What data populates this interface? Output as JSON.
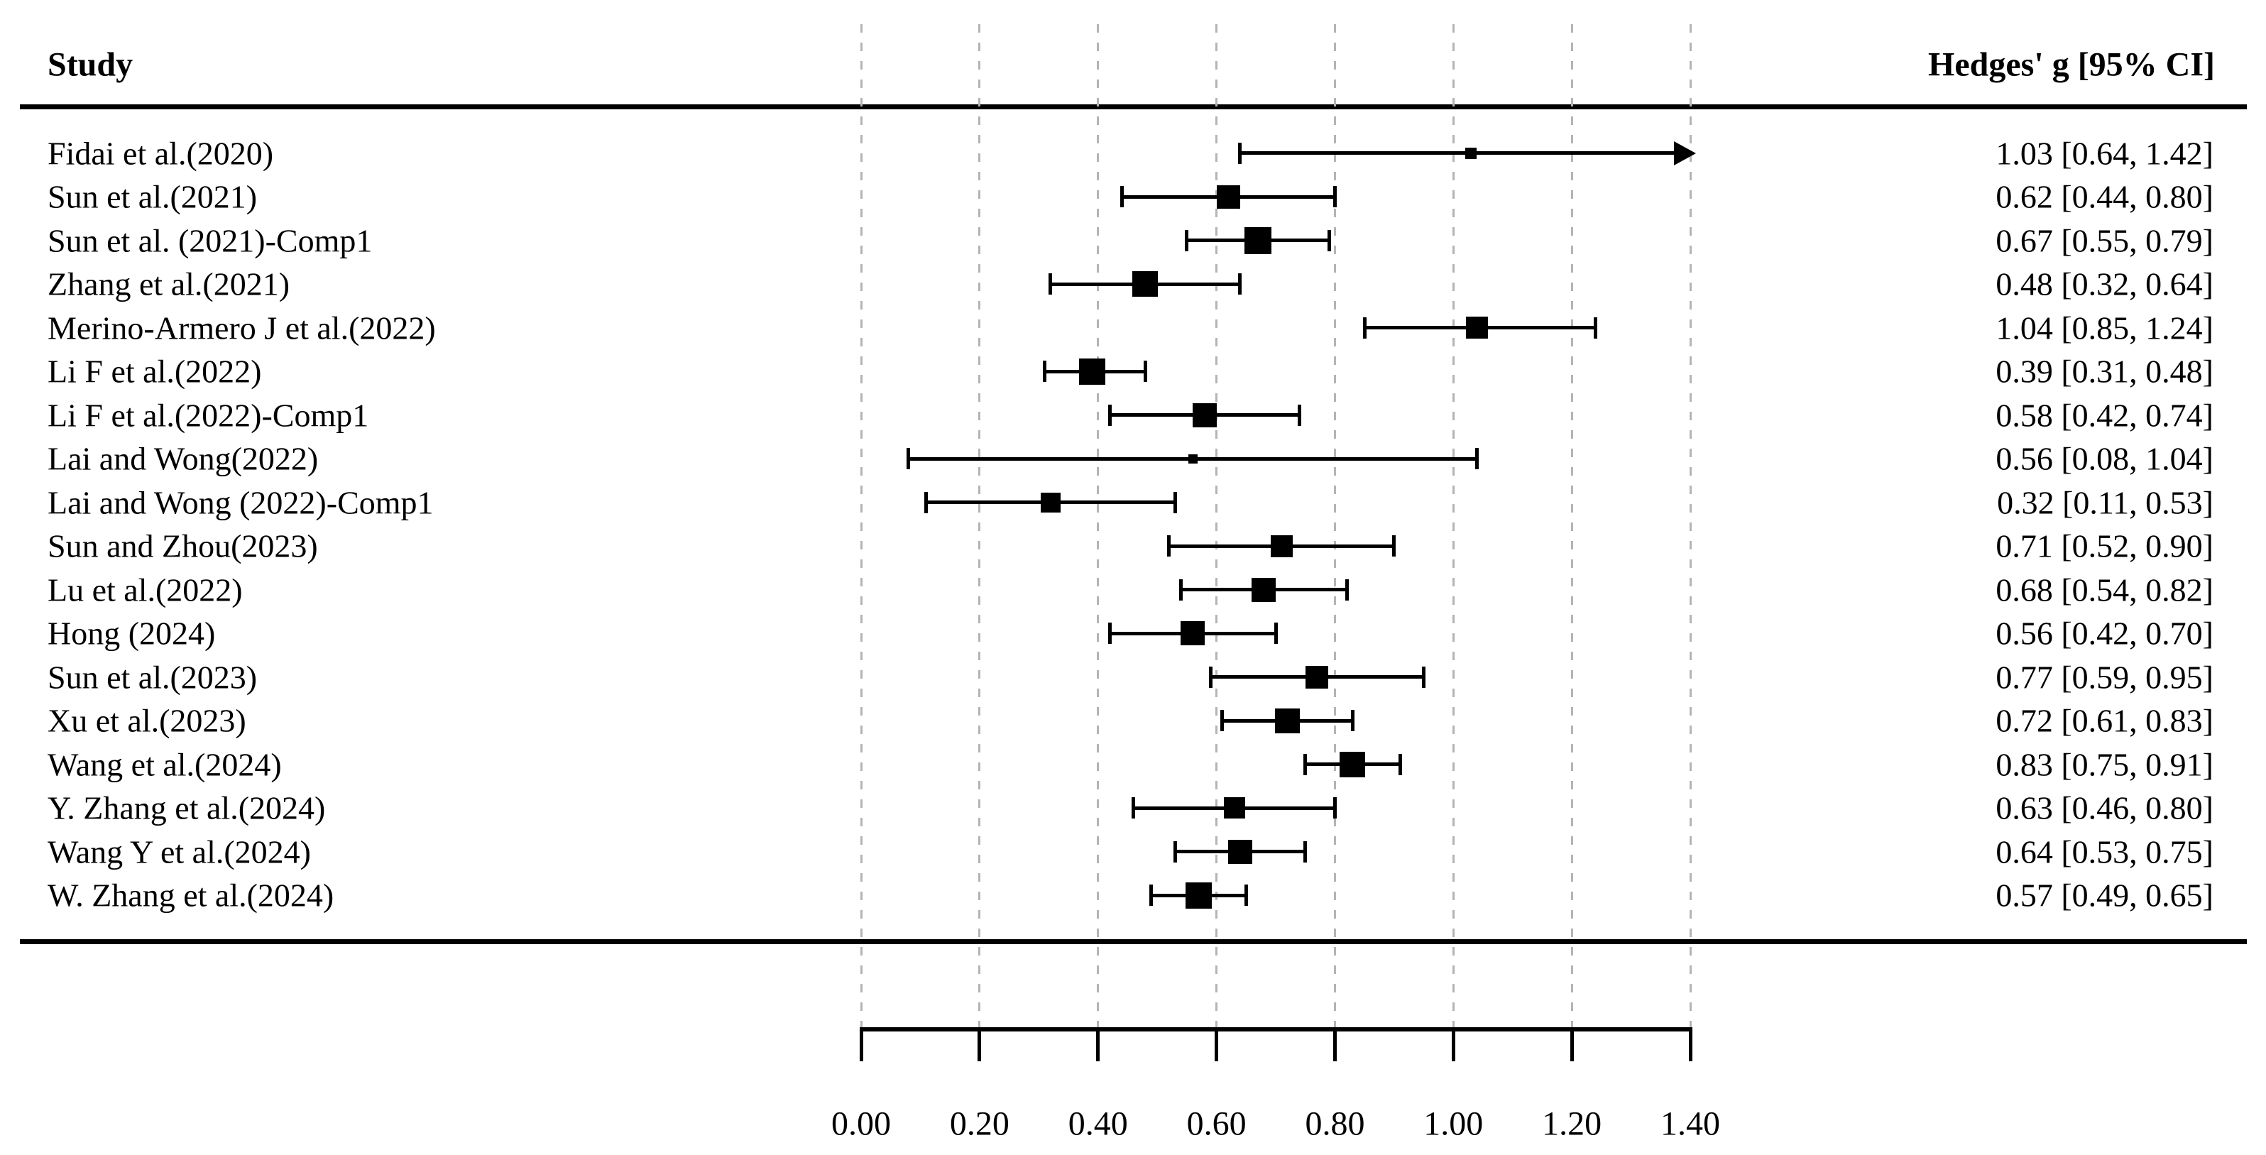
{
  "page": {
    "background": "#ffffff",
    "text_color": "#000000"
  },
  "headers": {
    "study": "Study",
    "effect": "Hedges' g [95% CI]"
  },
  "colors": {
    "marker": "#000000",
    "gridline": "#b4b4b4",
    "rule": "#000000",
    "axis": "#000000"
  },
  "chart_data": {
    "type": "scatter",
    "variant": "forest-plot",
    "effect_measure": "Hedges' g",
    "title": "",
    "xlabel": "",
    "ylabel": "",
    "x_axis": {
      "range": [
        0.0,
        1.4
      ],
      "ticks": [
        0.0,
        0.2,
        0.4,
        0.6,
        0.8,
        1.0,
        1.2,
        1.4
      ],
      "tick_labels": [
        "0.00",
        "0.20",
        "0.40",
        "0.60",
        "0.80",
        "1.00",
        "1.20",
        "1.40"
      ],
      "gridlines": "dashed-vertical"
    },
    "studies": [
      {
        "label": "Fidai et al.(2020)",
        "g": 1.03,
        "ci_lower": 0.64,
        "ci_upper": 1.42,
        "ci_text": "1.03 [0.64, 1.42]",
        "marker_size": 16,
        "upper_arrow": true
      },
      {
        "label": "Sun et al.(2021)",
        "g": 0.62,
        "ci_lower": 0.44,
        "ci_upper": 0.8,
        "ci_text": "0.62 [0.44, 0.80]",
        "marker_size": 33,
        "upper_arrow": false
      },
      {
        "label": "Sun et al. (2021)-Comp1",
        "g": 0.67,
        "ci_lower": 0.55,
        "ci_upper": 0.79,
        "ci_text": "0.67 [0.55, 0.79]",
        "marker_size": 38,
        "upper_arrow": false
      },
      {
        "label": "Zhang et al.(2021)",
        "g": 0.48,
        "ci_lower": 0.32,
        "ci_upper": 0.64,
        "ci_text": "0.48 [0.32, 0.64]",
        "marker_size": 36,
        "upper_arrow": false
      },
      {
        "label": "Merino-Armero J et al.(2022)",
        "g": 1.04,
        "ci_lower": 0.85,
        "ci_upper": 1.24,
        "ci_text": "1.04 [0.85, 1.24]",
        "marker_size": 31,
        "upper_arrow": false
      },
      {
        "label": "Li F et al.(2022)",
        "g": 0.39,
        "ci_lower": 0.31,
        "ci_upper": 0.48,
        "ci_text": "0.39 [0.31, 0.48]",
        "marker_size": 37,
        "upper_arrow": false
      },
      {
        "label": "Li F et al.(2022)-Comp1",
        "g": 0.58,
        "ci_lower": 0.42,
        "ci_upper": 0.74,
        "ci_text": "0.58 [0.42, 0.74]",
        "marker_size": 34,
        "upper_arrow": false
      },
      {
        "label": "Lai and Wong(2022)",
        "g": 0.56,
        "ci_lower": 0.08,
        "ci_upper": 1.04,
        "ci_text": "0.56 [0.08, 1.04]",
        "marker_size": 13,
        "upper_arrow": false
      },
      {
        "label": "Lai and Wong (2022)-Comp1",
        "g": 0.32,
        "ci_lower": 0.11,
        "ci_upper": 0.53,
        "ci_text": "0.32 [0.11, 0.53]",
        "marker_size": 28,
        "upper_arrow": false
      },
      {
        "label": "Sun and Zhou(2023)",
        "g": 0.71,
        "ci_lower": 0.52,
        "ci_upper": 0.9,
        "ci_text": "0.71 [0.52, 0.90]",
        "marker_size": 31,
        "upper_arrow": false
      },
      {
        "label": "Lu et al.(2022)",
        "g": 0.68,
        "ci_lower": 0.54,
        "ci_upper": 0.82,
        "ci_text": "0.68 [0.54, 0.82]",
        "marker_size": 34,
        "upper_arrow": false
      },
      {
        "label": "Hong (2024)",
        "g": 0.56,
        "ci_lower": 0.42,
        "ci_upper": 0.7,
        "ci_text": "0.56 [0.42, 0.70]",
        "marker_size": 34,
        "upper_arrow": false
      },
      {
        "label": "Sun et al.(2023)",
        "g": 0.77,
        "ci_lower": 0.59,
        "ci_upper": 0.95,
        "ci_text": "0.77 [0.59, 0.95]",
        "marker_size": 32,
        "upper_arrow": false
      },
      {
        "label": "Xu et al.(2023)",
        "g": 0.72,
        "ci_lower": 0.61,
        "ci_upper": 0.83,
        "ci_text": "0.72 [0.61, 0.83]",
        "marker_size": 35,
        "upper_arrow": false
      },
      {
        "label": "Wang et al.(2024)",
        "g": 0.83,
        "ci_lower": 0.75,
        "ci_upper": 0.91,
        "ci_text": "0.83 [0.75, 0.91]",
        "marker_size": 36,
        "upper_arrow": false
      },
      {
        "label": "Y. Zhang et al.(2024)",
        "g": 0.63,
        "ci_lower": 0.46,
        "ci_upper": 0.8,
        "ci_text": "0.63 [0.46, 0.80]",
        "marker_size": 30,
        "upper_arrow": false
      },
      {
        "label": "Wang Y et al.(2024)",
        "g": 0.64,
        "ci_lower": 0.53,
        "ci_upper": 0.75,
        "ci_text": "0.64 [0.53, 0.75]",
        "marker_size": 34,
        "upper_arrow": false
      },
      {
        "label": "W. Zhang et al.(2024)",
        "g": 0.57,
        "ci_lower": 0.49,
        "ci_upper": 0.65,
        "ci_text": "0.57 [0.49, 0.65]",
        "marker_size": 37,
        "upper_arrow": false
      }
    ]
  }
}
